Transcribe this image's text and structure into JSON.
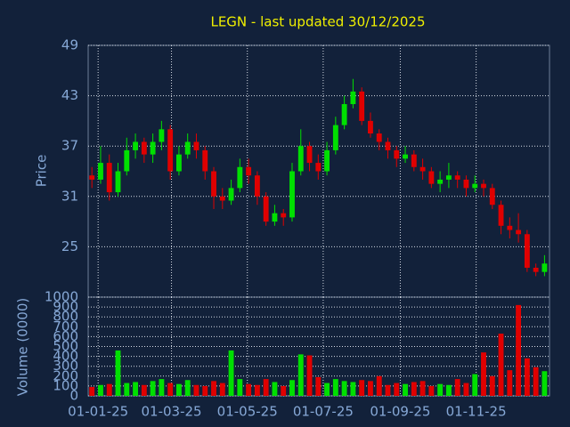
{
  "chart_data": [
    {
      "type": "candlestick",
      "title": "LEGN - last updated 30/12/2025",
      "y_label": "Price",
      "up_color": "#00e000",
      "down_color": "#e00000",
      "x": [
        "2024-12-27",
        "2025-01-03",
        "2025-01-10",
        "2025-01-17",
        "2025-01-24",
        "2025-01-31",
        "2025-02-07",
        "2025-02-14",
        "2025-02-21",
        "2025-02-28",
        "2025-03-07",
        "2025-03-14",
        "2025-03-21",
        "2025-03-28",
        "2025-04-04",
        "2025-04-11",
        "2025-04-18",
        "2025-04-25",
        "2025-05-02",
        "2025-05-09",
        "2025-05-16",
        "2025-05-23",
        "2025-05-30",
        "2025-06-06",
        "2025-06-13",
        "2025-06-20",
        "2025-06-27",
        "2025-07-04",
        "2025-07-11",
        "2025-07-18",
        "2025-07-25",
        "2025-08-01",
        "2025-08-08",
        "2025-08-15",
        "2025-08-22",
        "2025-08-29",
        "2025-09-05",
        "2025-09-12",
        "2025-09-19",
        "2025-09-26",
        "2025-10-03",
        "2025-10-10",
        "2025-10-17",
        "2025-10-24",
        "2025-10-31",
        "2025-11-07",
        "2025-11-14",
        "2025-11-21",
        "2025-11-28",
        "2025-12-05",
        "2025-12-12",
        "2025-12-19",
        "2025-12-26"
      ],
      "open": [
        33.5,
        33,
        35,
        31.5,
        34,
        36.5,
        37.5,
        36,
        37.5,
        39,
        34,
        36,
        37.5,
        36.5,
        34,
        31,
        30.5,
        32,
        34.5,
        33.5,
        31,
        28,
        29,
        28.5,
        34,
        37,
        35,
        34,
        36.5,
        39.5,
        42,
        43.5,
        40,
        38.5,
        37.5,
        36.5,
        35.5,
        36,
        34.5,
        34,
        32.5,
        33,
        33.5,
        33,
        32,
        32.5,
        32,
        30,
        27.5,
        27,
        26.5,
        22.5,
        22
      ],
      "high": [
        34.5,
        37,
        36,
        35,
        38,
        38.5,
        38,
        38.5,
        40,
        39.5,
        37,
        38.5,
        38.5,
        37,
        34.5,
        32,
        33,
        35.5,
        35.5,
        34,
        31.5,
        30,
        29.5,
        35,
        39,
        37.5,
        36,
        37.5,
        40.5,
        43,
        45,
        44,
        41,
        39,
        38,
        37,
        37,
        36.5,
        35.5,
        34.5,
        34,
        35,
        34,
        33.5,
        33.5,
        33,
        32.5,
        30.5,
        28.5,
        29,
        27,
        23,
        24
      ],
      "low": [
        32,
        32.5,
        30.5,
        31,
        33.5,
        35.5,
        35,
        35,
        36.5,
        33,
        33.5,
        35.5,
        35.5,
        33,
        29.5,
        29.5,
        30,
        31.5,
        32.5,
        30,
        27.5,
        27.5,
        27.5,
        28,
        33.5,
        34,
        33,
        33.5,
        36,
        39,
        41.5,
        39.5,
        38,
        36.5,
        35.5,
        34.5,
        35,
        34,
        33,
        32,
        31.5,
        32,
        32,
        31,
        31.5,
        31,
        29.5,
        26.5,
        26,
        25.5,
        22,
        21.5,
        21.5
      ],
      "close": [
        33,
        35,
        31.5,
        34,
        36.5,
        37.5,
        36,
        37.5,
        39,
        34,
        36,
        37.5,
        36.5,
        34,
        31,
        30.5,
        32,
        34.5,
        33.5,
        31,
        28,
        29,
        28.5,
        34,
        37,
        35,
        34,
        36.5,
        39.5,
        42,
        43.5,
        40,
        38.5,
        37.5,
        36.5,
        35.5,
        36,
        34.5,
        34,
        32.5,
        33,
        33.5,
        33,
        32,
        32.5,
        32,
        30,
        27.5,
        27,
        26.5,
        22.5,
        22,
        23
      ],
      "xlim": [
        "2024-12-24",
        "2025-12-30"
      ],
      "xticks": [
        {
          "value": "2025-01-01",
          "label": "01-01-25"
        },
        {
          "value": "2025-03-01",
          "label": "01-03-25"
        },
        {
          "value": "2025-05-01",
          "label": "01-05-25"
        },
        {
          "value": "2025-07-01",
          "label": "01-07-25"
        },
        {
          "value": "2025-09-01",
          "label": "01-09-25"
        },
        {
          "value": "2025-11-01",
          "label": "01-11-25"
        }
      ],
      "ylim": [
        19,
        49
      ],
      "yticks": [
        25,
        31,
        37,
        43,
        49
      ],
      "grid": true
    },
    {
      "type": "bar",
      "y_label": "Volume (0000)",
      "up_color": "#00e000",
      "down_color": "#e00000",
      "values": [
        90,
        110,
        120,
        460,
        130,
        140,
        110,
        150,
        170,
        130,
        120,
        160,
        110,
        100,
        150,
        130,
        460,
        170,
        120,
        110,
        170,
        140,
        100,
        160,
        420,
        410,
        190,
        130,
        170,
        150,
        140,
        160,
        150,
        200,
        110,
        130,
        120,
        140,
        150,
        100,
        120,
        110,
        170,
        130,
        220,
        440,
        200,
        630,
        260,
        920,
        380,
        290,
        250
      ],
      "ylim": [
        0,
        1000
      ],
      "yticks": [
        0,
        100,
        200,
        300,
        400,
        500,
        600,
        700,
        800,
        900,
        1000
      ],
      "grid": true
    }
  ]
}
